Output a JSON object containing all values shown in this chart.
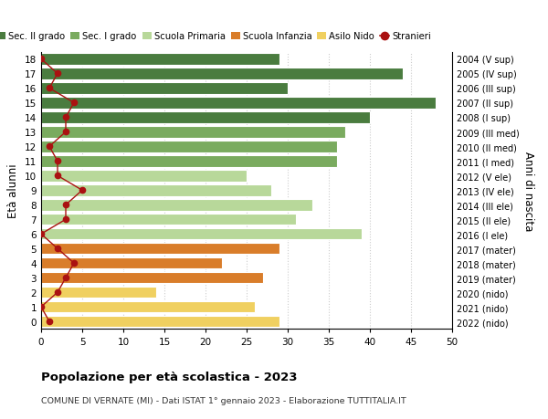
{
  "ages": [
    18,
    17,
    16,
    15,
    14,
    13,
    12,
    11,
    10,
    9,
    8,
    7,
    6,
    5,
    4,
    3,
    2,
    1,
    0
  ],
  "years": [
    "2004 (V sup)",
    "2005 (IV sup)",
    "2006 (III sup)",
    "2007 (II sup)",
    "2008 (I sup)",
    "2009 (III med)",
    "2010 (II med)",
    "2011 (I med)",
    "2012 (V ele)",
    "2013 (IV ele)",
    "2014 (III ele)",
    "2015 (II ele)",
    "2016 (I ele)",
    "2017 (mater)",
    "2018 (mater)",
    "2019 (mater)",
    "2020 (nido)",
    "2021 (nido)",
    "2022 (nido)"
  ],
  "values": [
    29,
    44,
    30,
    48,
    40,
    37,
    36,
    36,
    25,
    28,
    33,
    31,
    39,
    29,
    22,
    27,
    14,
    26,
    29
  ],
  "stranieri": [
    0,
    2,
    1,
    4,
    3,
    3,
    1,
    2,
    2,
    5,
    3,
    3,
    0,
    2,
    4,
    3,
    2,
    0,
    1
  ],
  "bar_colors": [
    "#4a7c3f",
    "#4a7c3f",
    "#4a7c3f",
    "#4a7c3f",
    "#4a7c3f",
    "#7aab5f",
    "#7aab5f",
    "#7aab5f",
    "#b8d89a",
    "#b8d89a",
    "#b8d89a",
    "#b8d89a",
    "#b8d89a",
    "#d97d2a",
    "#d97d2a",
    "#d97d2a",
    "#f0d060",
    "#f0d060",
    "#f0d060"
  ],
  "legend_colors": {
    "Sec. II grado": "#4a7c3f",
    "Sec. I grado": "#7aab5f",
    "Scuola Primaria": "#b8d89a",
    "Scuola Infanzia": "#d97d2a",
    "Asilo Nido": "#f0d060",
    "Stranieri": "#aa1111"
  },
  "title": "Popolazione per età scolastica - 2023",
  "subtitle": "COMUNE DI VERNATE (MI) - Dati ISTAT 1° gennaio 2023 - Elaborazione TUTTITALIA.IT",
  "ylabel_left": "Età alunni",
  "ylabel_right": "Anni di nascita",
  "xlim": [
    0,
    50
  ],
  "bg_color": "#ffffff",
  "grid_color": "#cccccc",
  "stranieri_color": "#aa1111"
}
